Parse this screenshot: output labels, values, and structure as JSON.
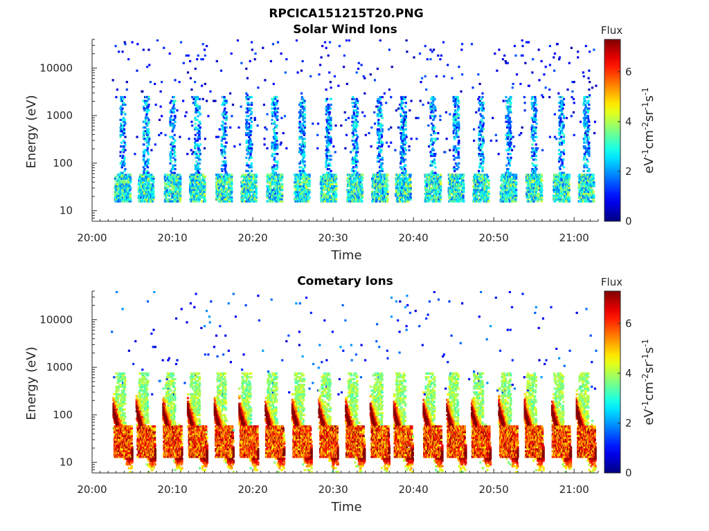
{
  "figure_title": "RPCICA151215T20.PNG",
  "chart_data": [
    {
      "type": "heatmap",
      "title": "Solar Wind Ions",
      "xlabel": "Time",
      "ylabel": "Energy (eV)",
      "x_ticks": [
        "20:00",
        "20:10",
        "20:20",
        "20:30",
        "20:40",
        "20:50",
        "21:00"
      ],
      "x_range_minutes": [
        0,
        63
      ],
      "y_scale": "log",
      "y_ticks": [
        "10",
        "100",
        "1000",
        "10000"
      ],
      "y_range": [
        6,
        40000
      ],
      "colorbar": {
        "title": "Flux",
        "ticks": [
          "0",
          "2",
          "4",
          "6"
        ],
        "range": [
          0,
          7.3
        ],
        "colormap": "jet"
      },
      "grid": false,
      "activity": "sparse",
      "bursts_minutes": [
        3.7,
        6.6,
        9.9,
        13.0,
        16.3,
        19.4,
        22.6,
        26.0,
        29.3,
        32.6,
        35.7,
        38.6,
        42.3,
        45.2,
        48.3,
        51.7,
        54.9,
        58.3,
        61.4
      ]
    },
    {
      "type": "heatmap",
      "title": "Cometary Ions",
      "xlabel": "Time",
      "ylabel": "Energy (eV)",
      "x_ticks": [
        "20:00",
        "20:10",
        "20:20",
        "20:30",
        "20:40",
        "20:50",
        "21:00"
      ],
      "x_range_minutes": [
        0,
        63
      ],
      "y_scale": "log",
      "y_ticks": [
        "10",
        "100",
        "1000",
        "10000"
      ],
      "y_range": [
        6,
        40000
      ],
      "colorbar": {
        "title": "Flux",
        "ticks": [
          "0",
          "2",
          "4",
          "6"
        ],
        "range": [
          0,
          7.3
        ],
        "colormap": "jet"
      },
      "grid": false,
      "activity": "dense",
      "bursts_minutes": [
        3.7,
        6.6,
        9.9,
        13.0,
        16.3,
        19.4,
        22.6,
        26.0,
        29.3,
        32.6,
        35.7,
        38.6,
        42.3,
        45.2,
        48.3,
        51.7,
        54.9,
        58.3,
        61.4
      ]
    }
  ]
}
